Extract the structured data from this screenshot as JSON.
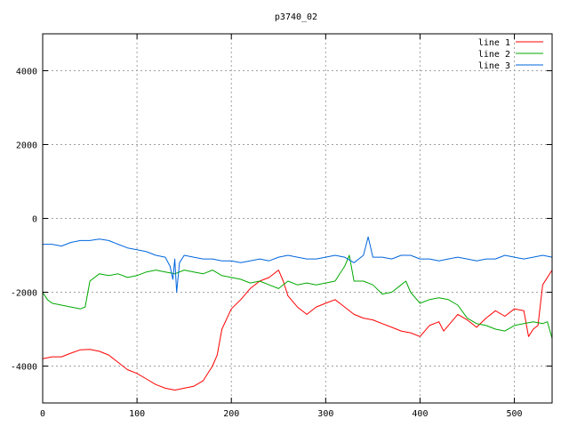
{
  "chart_data": {
    "type": "line",
    "title": "p3740_02",
    "xlabel": "",
    "ylabel": "",
    "xlim": [
      0,
      540
    ],
    "ylim": [
      -5000,
      5000
    ],
    "xticks": [
      0,
      100,
      200,
      300,
      400,
      500
    ],
    "yticks": [
      -4000,
      -2000,
      0,
      2000,
      4000
    ],
    "grid": true,
    "legend_position": "top-right",
    "series": [
      {
        "name": "line 1",
        "color": "#ff0000",
        "x": [
          0,
          10,
          20,
          30,
          40,
          50,
          60,
          70,
          80,
          90,
          100,
          110,
          120,
          130,
          140,
          150,
          160,
          170,
          180,
          185,
          190,
          200,
          210,
          220,
          230,
          240,
          250,
          255,
          260,
          270,
          280,
          290,
          300,
          310,
          320,
          330,
          340,
          350,
          360,
          370,
          380,
          390,
          400,
          410,
          420,
          425,
          430,
          440,
          450,
          460,
          470,
          480,
          490,
          500,
          510,
          515,
          520,
          525,
          530,
          540
        ],
        "values": [
          -3800,
          -3750,
          -3750,
          -3650,
          -3560,
          -3550,
          -3600,
          -3700,
          -3900,
          -4100,
          -4200,
          -4350,
          -4500,
          -4600,
          -4650,
          -4600,
          -4550,
          -4400,
          -4000,
          -3700,
          -3000,
          -2450,
          -2200,
          -1900,
          -1700,
          -1600,
          -1400,
          -1700,
          -2100,
          -2400,
          -2600,
          -2400,
          -2300,
          -2200,
          -2400,
          -2600,
          -2700,
          -2750,
          -2850,
          -2950,
          -3050,
          -3100,
          -3200,
          -2900,
          -2800,
          -3050,
          -2900,
          -2600,
          -2750,
          -2950,
          -2700,
          -2500,
          -2650,
          -2450,
          -2500,
          -3200,
          -3000,
          -2900,
          -1800,
          -1400
        ]
      },
      {
        "name": "line 2",
        "color": "#00aa00",
        "x": [
          0,
          5,
          10,
          20,
          30,
          40,
          45,
          50,
          60,
          70,
          80,
          90,
          100,
          110,
          120,
          130,
          140,
          150,
          160,
          170,
          180,
          190,
          200,
          210,
          220,
          230,
          240,
          250,
          260,
          270,
          280,
          290,
          300,
          310,
          320,
          325,
          330,
          340,
          350,
          360,
          370,
          380,
          385,
          390,
          400,
          410,
          420,
          430,
          440,
          450,
          460,
          470,
          480,
          490,
          500,
          510,
          520,
          530,
          535,
          540
        ],
        "values": [
          -2000,
          -2200,
          -2300,
          -2350,
          -2400,
          -2450,
          -2400,
          -1700,
          -1500,
          -1550,
          -1500,
          -1600,
          -1550,
          -1450,
          -1400,
          -1450,
          -1500,
          -1400,
          -1450,
          -1500,
          -1400,
          -1550,
          -1600,
          -1650,
          -1750,
          -1700,
          -1800,
          -1900,
          -1700,
          -1800,
          -1750,
          -1800,
          -1750,
          -1700,
          -1300,
          -1000,
          -1700,
          -1700,
          -1800,
          -2050,
          -2000,
          -1800,
          -1700,
          -2000,
          -2300,
          -2200,
          -2150,
          -2200,
          -2350,
          -2700,
          -2850,
          -2900,
          -3000,
          -3050,
          -2900,
          -2850,
          -2800,
          -2850,
          -2800,
          -3250
        ]
      },
      {
        "name": "line 3",
        "color": "#0066dd",
        "x": [
          0,
          10,
          20,
          30,
          40,
          50,
          60,
          70,
          80,
          90,
          100,
          110,
          120,
          130,
          135,
          138,
          140,
          142,
          145,
          150,
          160,
          170,
          180,
          190,
          200,
          210,
          220,
          230,
          240,
          250,
          260,
          270,
          280,
          290,
          300,
          310,
          320,
          330,
          340,
          345,
          350,
          360,
          370,
          380,
          390,
          400,
          410,
          420,
          430,
          440,
          450,
          460,
          470,
          480,
          490,
          500,
          510,
          520,
          530,
          540
        ],
        "values": [
          -700,
          -700,
          -750,
          -650,
          -600,
          -600,
          -560,
          -600,
          -700,
          -800,
          -850,
          -900,
          -1000,
          -1050,
          -1300,
          -1650,
          -1100,
          -2000,
          -1200,
          -1000,
          -1050,
          -1100,
          -1100,
          -1150,
          -1150,
          -1200,
          -1150,
          -1100,
          -1150,
          -1050,
          -1000,
          -1050,
          -1100,
          -1100,
          -1050,
          -1000,
          -1050,
          -1200,
          -1000,
          -500,
          -1050,
          -1050,
          -1100,
          -1000,
          -1000,
          -1100,
          -1100,
          -1150,
          -1100,
          -1050,
          -1100,
          -1150,
          -1100,
          -1100,
          -1000,
          -1050,
          -1100,
          -1050,
          -1000,
          -1050
        ]
      }
    ]
  }
}
